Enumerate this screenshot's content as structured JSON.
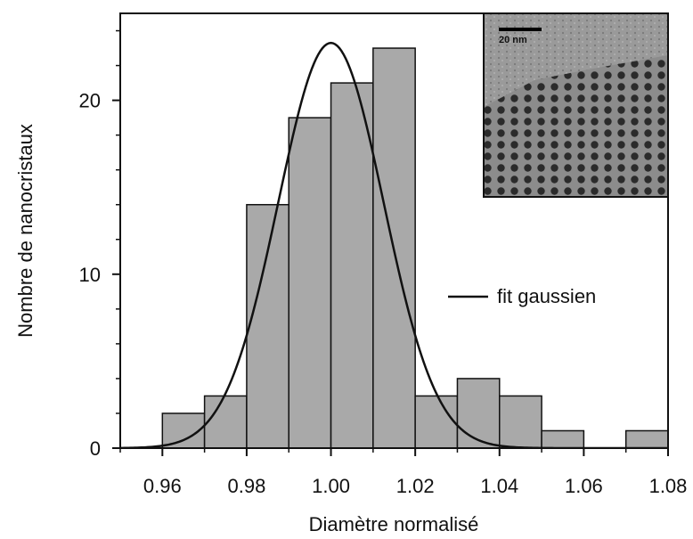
{
  "chart_data": {
    "type": "bar",
    "xlabel": "Diamètre normalisé",
    "ylabel": "Nombre de nanocristaux",
    "xlim": [
      0.95,
      1.08
    ],
    "ylim": [
      0,
      25
    ],
    "x_ticks": [
      0.96,
      0.98,
      1.0,
      1.02,
      1.04,
      1.06,
      1.08
    ],
    "x_tick_labels": [
      "0.96",
      "0.98",
      "1.00",
      "1.02",
      "1.04",
      "1.06",
      "1.08"
    ],
    "y_ticks": [
      0,
      10,
      20
    ],
    "y_tick_labels": [
      "0",
      "10",
      "20"
    ],
    "bin_width": 0.01,
    "bins": [
      {
        "start": 0.96,
        "count": 2
      },
      {
        "start": 0.97,
        "count": 3
      },
      {
        "start": 0.98,
        "count": 14
      },
      {
        "start": 0.99,
        "count": 19
      },
      {
        "start": 1.0,
        "count": 21
      },
      {
        "start": 1.01,
        "count": 23
      },
      {
        "start": 1.02,
        "count": 3
      },
      {
        "start": 1.03,
        "count": 4
      },
      {
        "start": 1.04,
        "count": 3
      },
      {
        "start": 1.05,
        "count": 1
      },
      {
        "start": 1.07,
        "count": 1
      }
    ],
    "fit": {
      "label": "fit gaussien",
      "type": "gaussian",
      "mean": 1.0,
      "sigma": 0.0125,
      "amplitude": 23.3
    },
    "bar_color": "#a9a9a9",
    "inset": {
      "type": "micrograph",
      "scale_bar_label": "20 nm",
      "position": "top-right"
    },
    "legend_position": "middle-right",
    "grid": false
  }
}
